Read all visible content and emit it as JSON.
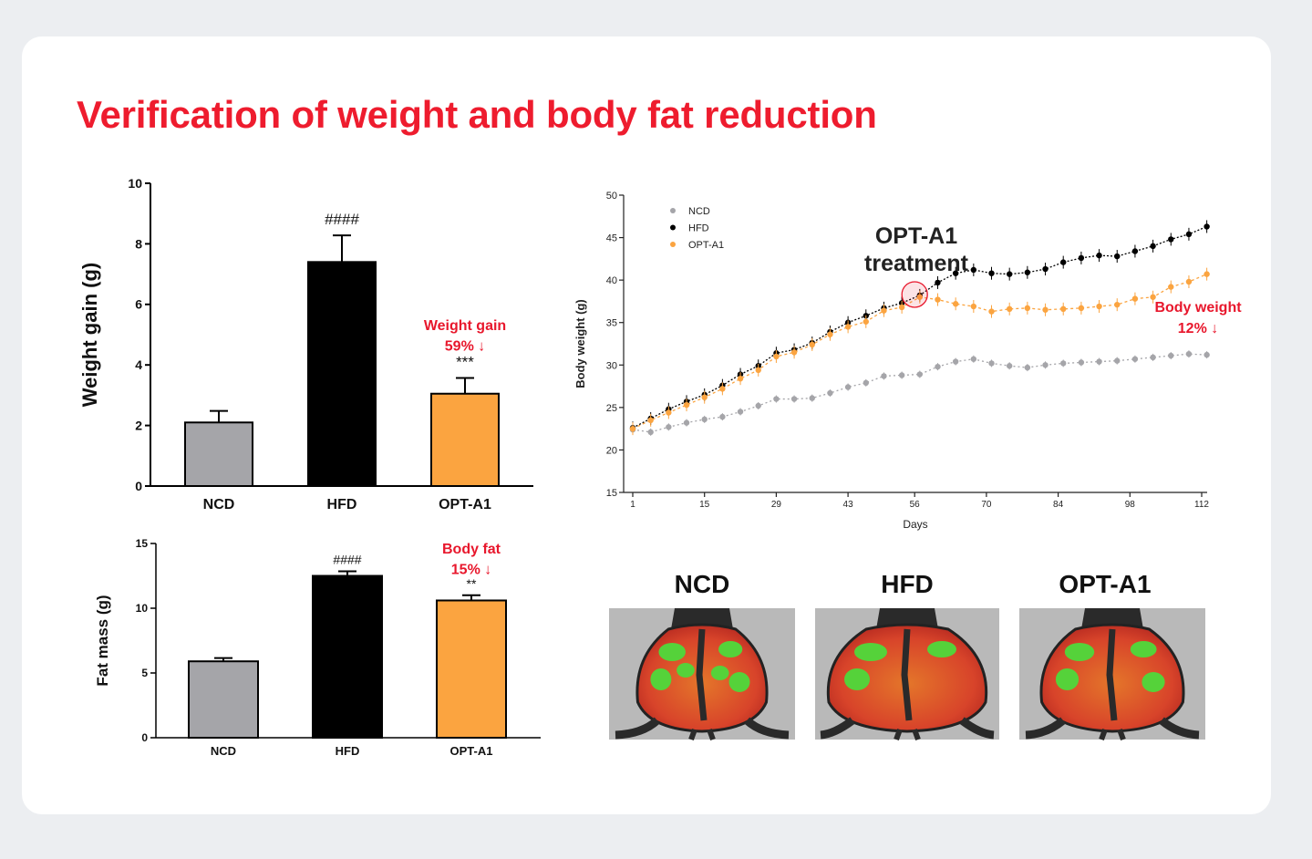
{
  "page": {
    "title": "Verification of weight and body fat reduction"
  },
  "colors": {
    "title_red": "#ee1c2e",
    "ncd": "#a5a5a9",
    "hfd": "#000000",
    "opt": "#fba440",
    "annotation_red": "#e8172c"
  },
  "chart_data": [
    {
      "id": "weight_gain",
      "type": "bar",
      "categories": [
        "NCD",
        "HFD",
        "OPT-A1"
      ],
      "values": [
        2.1,
        7.4,
        3.05
      ],
      "errors": [
        0.38,
        0.88,
        0.52
      ],
      "colors": [
        "#a5a5a9",
        "#000000",
        "#fba440"
      ],
      "significance": [
        "",
        "####",
        "***"
      ],
      "ylabel": "Weight gain (g)",
      "ylim": [
        0,
        10
      ],
      "yticks": [
        "0",
        "2",
        "4",
        "6",
        "8",
        "10"
      ],
      "annotation": {
        "line1": "Weight gain",
        "line2": "59% ↓"
      }
    },
    {
      "id": "fat_mass",
      "type": "bar",
      "categories": [
        "NCD",
        "HFD",
        "OPT-A1"
      ],
      "values": [
        5.9,
        12.5,
        10.6
      ],
      "errors": [
        0.25,
        0.35,
        0.4
      ],
      "colors": [
        "#a5a5a9",
        "#000000",
        "#fba440"
      ],
      "significance": [
        "",
        "####",
        "**"
      ],
      "ylabel": "Fat mass (g)",
      "ylim": [
        0,
        15
      ],
      "yticks": [
        "0",
        "5",
        "10",
        "15"
      ],
      "annotation": {
        "line1": "Body fat",
        "line2": "15% ↓"
      }
    },
    {
      "id": "body_weight",
      "type": "line",
      "xlabel": "Days",
      "ylabel": "Body weight (g)",
      "xlim": [
        1,
        112
      ],
      "ylim": [
        15,
        50
      ],
      "xticks": [
        "1",
        "15",
        "29",
        "43",
        "56",
        "70",
        "84",
        "98",
        "112"
      ],
      "yticks": [
        "15",
        "20",
        "25",
        "30",
        "35",
        "40",
        "45",
        "50"
      ],
      "legend": [
        "NCD",
        "HFD",
        "OPT-A1"
      ],
      "legend_position": "top-left",
      "treatment_label": {
        "line1": "OPT-A1",
        "line2": "treatment",
        "day": 56
      },
      "annotation": {
        "line1": "Body weight",
        "line2": "12% ↓"
      },
      "series": [
        {
          "name": "NCD",
          "color": "#a5a5a9",
          "x": [
            1,
            4.5,
            8,
            11.5,
            15,
            18.5,
            22,
            25.5,
            29,
            32.5,
            36,
            39.5,
            43,
            46.5,
            50,
            53.5,
            57,
            60.5,
            64,
            67.5,
            71,
            74.5,
            78,
            81.5,
            85,
            88.5,
            92,
            95.5,
            99,
            102.5,
            106,
            109.5,
            113
          ],
          "y": [
            22.4,
            22.1,
            22.7,
            23.2,
            23.6,
            23.9,
            24.5,
            25.2,
            26.0,
            26.0,
            26.1,
            26.7,
            27.4,
            27.9,
            28.7,
            28.8,
            28.9,
            29.8,
            30.4,
            30.7,
            30.2,
            29.9,
            29.7,
            30.0,
            30.2,
            30.3,
            30.4,
            30.5,
            30.7,
            30.9,
            31.1,
            31.3,
            31.2
          ]
        },
        {
          "name": "HFD",
          "color": "#000000",
          "x": [
            1,
            4.5,
            8,
            11.5,
            15,
            18.5,
            22,
            25.5,
            29,
            32.5,
            36,
            39.5,
            43,
            46.5,
            50,
            53.5,
            57,
            60.5,
            64,
            67.5,
            71,
            74.5,
            78,
            81.5,
            85,
            88.5,
            92,
            95.5,
            99,
            102.5,
            106,
            109.5,
            113
          ],
          "y": [
            22.6,
            23.7,
            24.8,
            25.7,
            26.5,
            27.6,
            28.9,
            29.9,
            31.4,
            31.8,
            32.6,
            33.9,
            35.0,
            35.8,
            36.7,
            37.3,
            38.2,
            39.7,
            40.8,
            41.2,
            40.8,
            40.7,
            40.9,
            41.3,
            42.1,
            42.6,
            42.9,
            42.8,
            43.4,
            44.0,
            44.8,
            45.4,
            46.3
          ]
        },
        {
          "name": "OPT-A1",
          "color": "#fba440",
          "x": [
            1,
            4.5,
            8,
            11.5,
            15,
            18.5,
            22,
            25.5,
            29,
            32.5,
            36,
            39.5,
            43,
            46.5,
            50,
            53.5,
            57,
            60.5,
            64,
            67.5,
            71,
            74.5,
            78,
            81.5,
            85,
            88.5,
            92,
            95.5,
            99,
            102.5,
            106,
            109.5,
            113
          ],
          "y": [
            22.5,
            23.5,
            24.4,
            25.3,
            26.2,
            27.2,
            28.4,
            29.4,
            31.0,
            31.5,
            32.4,
            33.6,
            34.5,
            35.1,
            36.4,
            36.8,
            38.0,
            37.7,
            37.2,
            36.9,
            36.3,
            36.6,
            36.7,
            36.5,
            36.6,
            36.7,
            36.9,
            37.1,
            37.8,
            38.0,
            39.2,
            39.8,
            40.7
          ]
        }
      ]
    }
  ],
  "mice_images": [
    {
      "label": "NCD",
      "alt": "thermal scan NCD mouse"
    },
    {
      "label": "HFD",
      "alt": "thermal scan HFD mouse"
    },
    {
      "label": "OPT-A1",
      "alt": "thermal scan OPT-A1 mouse"
    }
  ]
}
